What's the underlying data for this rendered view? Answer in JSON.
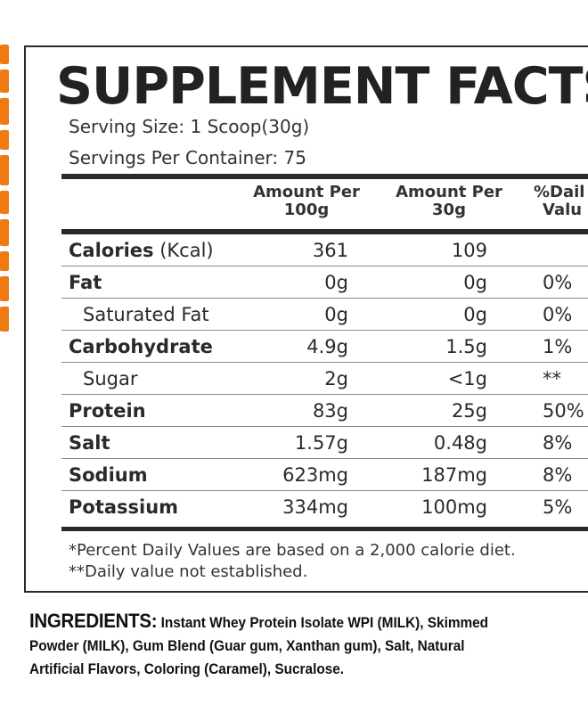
{
  "panel": {
    "title": "SUPPLEMENT FACTS",
    "serving_size": "Serving Size: 1 Scoop(30g)",
    "servings_per_container": "Servings Per Container: 75",
    "columns": [
      {
        "line1": "Amount Per",
        "line2": "100g"
      },
      {
        "line1": "Amount Per",
        "line2": "30g"
      },
      {
        "line1": "%Dail",
        "line2": "Valu"
      }
    ],
    "rows": [
      {
        "name": "Calories",
        "unit": " (Kcal)",
        "per100": "361",
        "per30": "109",
        "dv": ""
      },
      {
        "name": "Fat",
        "unit": "",
        "per100": "0g",
        "per30": "0g",
        "dv": "0%"
      },
      {
        "name": "Saturated Fat",
        "unit": "",
        "per100": "0g",
        "per30": "0g",
        "dv": "0%"
      },
      {
        "name": "Carbohydrate",
        "unit": "",
        "per100": "4.9g",
        "per30": "1.5g",
        "dv": "1%"
      },
      {
        "name": "Sugar",
        "unit": "",
        "per100": "2g",
        "per30": "<1g",
        "dv": "**"
      },
      {
        "name": "Protein",
        "unit": "",
        "per100": "83g",
        "per30": "25g",
        "dv": "50%"
      },
      {
        "name": "Salt",
        "unit": "",
        "per100": "1.57g",
        "per30": "0.48g",
        "dv": "8%"
      },
      {
        "name": "Sodium",
        "unit": "",
        "per100": "623mg",
        "per30": "187mg",
        "dv": "8%"
      },
      {
        "name": "Potassium",
        "unit": "",
        "per100": "334mg",
        "per30": "100mg",
        "dv": "5%"
      }
    ],
    "footnote1": "*Percent Daily Values are based on a 2,000 calorie diet.",
    "footnote2": "**Daily value not established."
  },
  "ingredients": {
    "label": "INGREDIENTS:",
    "line1": "Instant Whey Protein Isolate WPI (MILK), Skimmed",
    "line2": "Powder (MILK), Gum Blend (Guar gum, Xanthan gum), Salt, Natural",
    "line3": "Artificial Flavors, Coloring (Caramel), Sucralose."
  },
  "colors": {
    "accent": "#f07a12",
    "rule": "#2a2a2a",
    "text": "#1a1a1a"
  }
}
